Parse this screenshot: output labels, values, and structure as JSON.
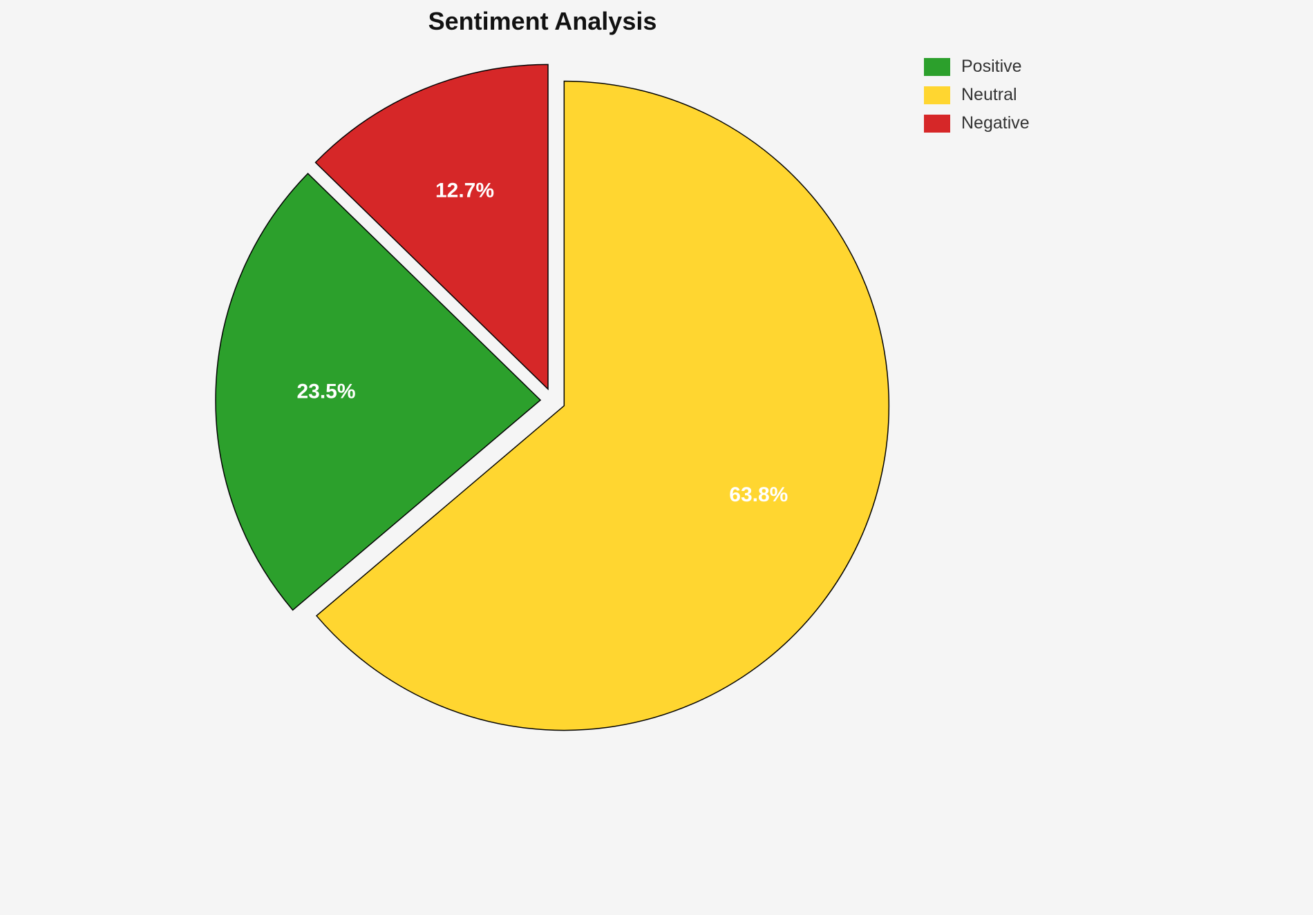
{
  "title": "Sentiment Analysis",
  "chart_data": {
    "type": "pie",
    "title": "Sentiment Analysis",
    "slices": [
      {
        "label": "Positive",
        "value": 23.5,
        "color": "#2ca02c"
      },
      {
        "label": "Neutral",
        "value": 63.8,
        "color": "#ffd630"
      },
      {
        "label": "Negative",
        "value": 12.7,
        "color": "#d62728"
      }
    ],
    "label_format": "percent_one_decimal",
    "legend_position": "top-right",
    "background_color": "#f5f5f5",
    "slice_edge_color": "#000000",
    "exploded": true
  }
}
